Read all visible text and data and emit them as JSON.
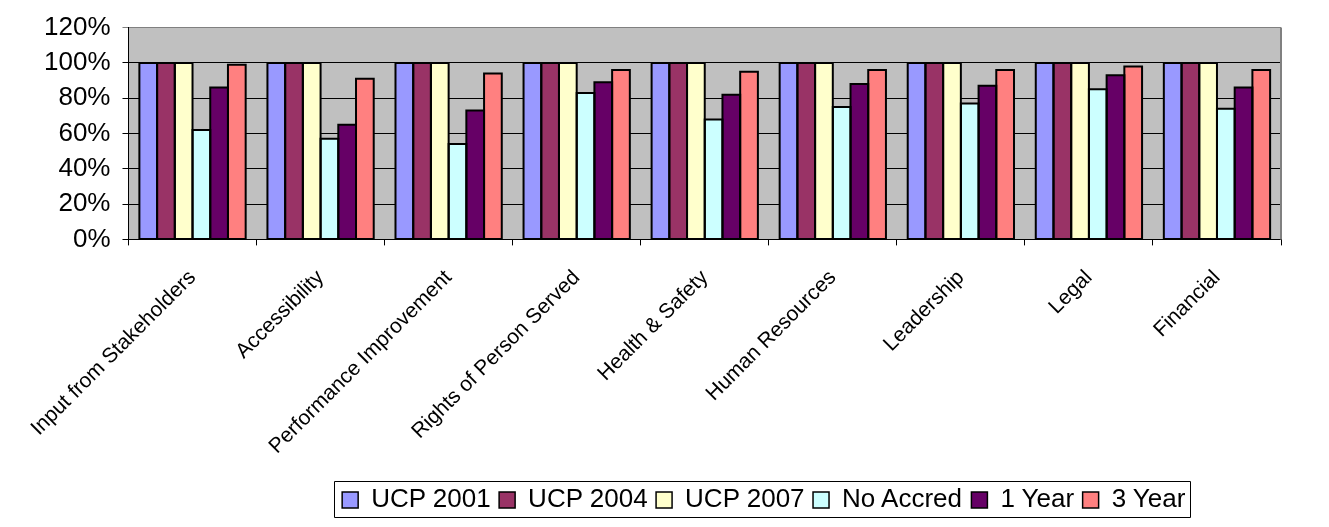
{
  "chart_data": {
    "type": "bar",
    "categories": [
      "Input from Stakeholders",
      "Accessibility",
      "Performance Improvement",
      "Rights of Person Served",
      "Health & Safety",
      "Human Resources",
      "Leadership",
      "Legal",
      "Financial"
    ],
    "series": [
      {
        "name": "UCP 2001",
        "color": "#9999ff",
        "values": [
          100,
          100,
          100,
          100,
          100,
          100,
          100,
          100,
          100
        ]
      },
      {
        "name": "UCP 2004",
        "color": "#993366",
        "values": [
          100,
          100,
          100,
          100,
          100,
          100,
          100,
          100,
          100
        ]
      },
      {
        "name": "UCP 2007",
        "color": "#ffffcc",
        "values": [
          100,
          100,
          100,
          100,
          100,
          100,
          100,
          100,
          100
        ]
      },
      {
        "name": "No Accred",
        "color": "#ccffff",
        "values": [
          62,
          57,
          54,
          83,
          68,
          75,
          77,
          85,
          74
        ]
      },
      {
        "name": "1 Year",
        "color": "#660066",
        "values": [
          86,
          65,
          73,
          89,
          82,
          88,
          87,
          93,
          86
        ]
      },
      {
        "name": "3 Year",
        "color": "#ff8080",
        "values": [
          99,
          91,
          94,
          96,
          95,
          96,
          96,
          98,
          96
        ]
      }
    ],
    "ylim": [
      0,
      120
    ],
    "yticks": [
      {
        "value": 0,
        "label": "0%"
      },
      {
        "value": 20,
        "label": "20%"
      },
      {
        "value": 40,
        "label": "40%"
      },
      {
        "value": 60,
        "label": "60%"
      },
      {
        "value": 80,
        "label": "80%"
      },
      {
        "value": 100,
        "label": "100%"
      },
      {
        "value": 120,
        "label": "120%"
      }
    ],
    "grid": "y",
    "legend": "bottom"
  }
}
